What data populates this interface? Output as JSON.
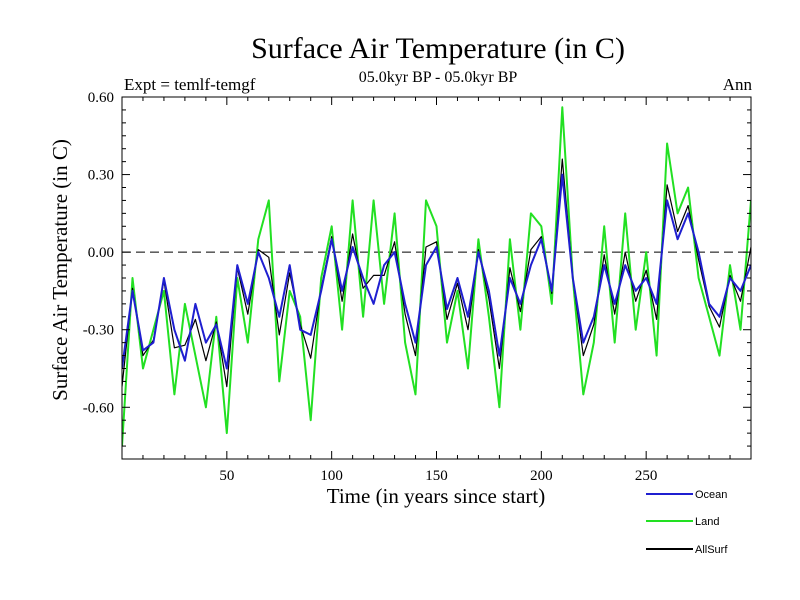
{
  "chart_data": {
    "type": "line",
    "title": "Surface Air Temperature (in C)",
    "subtitle": "05.0kyr BP - 05.0kyr BP",
    "left_label": "Expt = temlf-temgf",
    "right_label": "Ann",
    "xlabel": "Time (in years since start)",
    "ylabel": "Surface Air Temperature (in C)",
    "xlim": [
      0,
      300
    ],
    "ylim": [
      -0.8,
      0.6
    ],
    "x_ticks": [
      50,
      100,
      150,
      200,
      250
    ],
    "y_ticks": [
      0.6,
      0.3,
      0.0,
      -0.3,
      -0.6
    ],
    "y_tick_labels": [
      "0.60",
      "0.30",
      "0.00",
      "-0.30",
      "-0.60"
    ],
    "zero_line": 0,
    "legend_position": "bottom-right",
    "series": [
      {
        "name": "Ocean",
        "color": "#1f1fd0",
        "x": [
          0,
          5,
          10,
          15,
          20,
          25,
          30,
          35,
          40,
          45,
          50,
          55,
          60,
          65,
          70,
          75,
          80,
          85,
          90,
          95,
          100,
          105,
          110,
          115,
          120,
          125,
          130,
          135,
          140,
          145,
          150,
          155,
          160,
          165,
          170,
          175,
          180,
          185,
          190,
          195,
          200,
          205,
          210,
          215,
          220,
          225,
          230,
          235,
          240,
          245,
          250,
          255,
          260,
          265,
          270,
          275,
          280,
          285,
          290,
          295,
          300
        ],
        "values": [
          -0.45,
          -0.15,
          -0.38,
          -0.35,
          -0.1,
          -0.3,
          -0.42,
          -0.2,
          -0.35,
          -0.28,
          -0.45,
          -0.05,
          -0.2,
          0.0,
          -0.1,
          -0.25,
          -0.05,
          -0.3,
          -0.32,
          -0.15,
          0.05,
          -0.15,
          0.02,
          -0.1,
          -0.2,
          -0.05,
          0.0,
          -0.2,
          -0.35,
          -0.05,
          0.02,
          -0.22,
          -0.1,
          -0.25,
          0.0,
          -0.15,
          -0.4,
          -0.1,
          -0.2,
          -0.05,
          0.05,
          -0.15,
          0.3,
          -0.1,
          -0.35,
          -0.25,
          -0.05,
          -0.2,
          -0.05,
          -0.15,
          -0.1,
          -0.2,
          0.2,
          0.05,
          0.15,
          0.0,
          -0.2,
          -0.25,
          -0.1,
          -0.15,
          -0.05
        ]
      },
      {
        "name": "Land",
        "color": "#22e022",
        "x": [
          0,
          5,
          10,
          15,
          20,
          25,
          30,
          35,
          40,
          45,
          50,
          55,
          60,
          65,
          70,
          75,
          80,
          85,
          90,
          95,
          100,
          105,
          110,
          115,
          120,
          125,
          130,
          135,
          140,
          145,
          150,
          155,
          160,
          165,
          170,
          175,
          180,
          185,
          190,
          195,
          200,
          205,
          210,
          215,
          220,
          225,
          230,
          235,
          240,
          245,
          250,
          255,
          260,
          265,
          270,
          275,
          280,
          285,
          290,
          295,
          300
        ],
        "values": [
          -0.75,
          -0.1,
          -0.45,
          -0.3,
          -0.15,
          -0.55,
          -0.2,
          -0.4,
          -0.6,
          -0.25,
          -0.7,
          -0.1,
          -0.35,
          0.05,
          0.2,
          -0.5,
          -0.15,
          -0.25,
          -0.65,
          -0.1,
          0.1,
          -0.3,
          0.2,
          -0.25,
          0.2,
          -0.2,
          0.15,
          -0.35,
          -0.55,
          0.2,
          0.1,
          -0.35,
          -0.15,
          -0.45,
          0.05,
          -0.25,
          -0.6,
          0.05,
          -0.3,
          0.15,
          0.1,
          -0.2,
          0.56,
          -0.1,
          -0.55,
          -0.35,
          0.1,
          -0.35,
          0.15,
          -0.3,
          0.0,
          -0.4,
          0.42,
          0.15,
          0.25,
          -0.1,
          -0.25,
          -0.4,
          -0.05,
          -0.3,
          0.2
        ]
      },
      {
        "name": "AllSurf",
        "color": "#000000",
        "x": [
          0,
          5,
          10,
          15,
          20,
          25,
          30,
          35,
          40,
          45,
          50,
          55,
          60,
          65,
          70,
          75,
          80,
          85,
          90,
          95,
          100,
          105,
          110,
          115,
          120,
          125,
          130,
          135,
          140,
          145,
          150,
          155,
          160,
          165,
          170,
          175,
          180,
          185,
          190,
          195,
          200,
          205,
          210,
          215,
          220,
          225,
          230,
          235,
          240,
          245,
          250,
          255,
          260,
          265,
          270,
          275,
          280,
          285,
          290,
          295,
          300
        ],
        "values": [
          -0.52,
          -0.14,
          -0.4,
          -0.34,
          -0.11,
          -0.37,
          -0.36,
          -0.26,
          -0.42,
          -0.27,
          -0.52,
          -0.06,
          -0.24,
          0.01,
          -0.02,
          -0.32,
          -0.08,
          -0.28,
          -0.41,
          -0.14,
          0.06,
          -0.19,
          0.07,
          -0.14,
          -0.09,
          -0.09,
          0.04,
          -0.24,
          -0.4,
          0.02,
          0.04,
          -0.26,
          -0.12,
          -0.3,
          0.01,
          -0.18,
          -0.45,
          -0.06,
          -0.23,
          0.01,
          0.06,
          -0.16,
          0.36,
          -0.1,
          -0.4,
          -0.28,
          -0.01,
          -0.24,
          0.0,
          -0.19,
          -0.07,
          -0.26,
          0.26,
          0.08,
          0.18,
          -0.03,
          -0.21,
          -0.29,
          -0.09,
          -0.19,
          0.02
        ]
      }
    ]
  }
}
